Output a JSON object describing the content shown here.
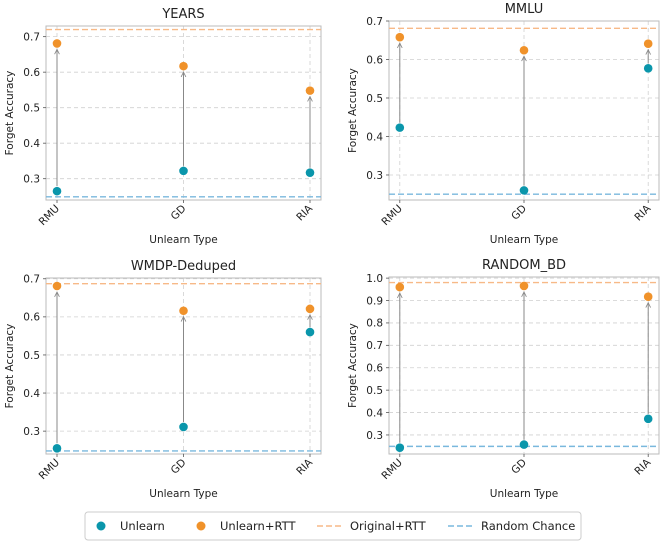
{
  "colors": {
    "unlearn": "#0a96ab",
    "unlearn_rtt": "#f0922a",
    "original_rtt": "#f7b987",
    "random_chance": "#79b8dd",
    "arrow": "#888888",
    "grid": "#d0d0d0",
    "spine": "#bbbbbb"
  },
  "legend": {
    "unlearn": "Unlearn",
    "unlearn_rtt": "Unlearn+RTT",
    "original_rtt": "Original+RTT",
    "random_chance": "Random Chance"
  },
  "chart_data": [
    {
      "type": "scatter",
      "title": "YEARS",
      "xlabel": "Unlearn Type",
      "ylabel": "Forget Accuracy",
      "categories": [
        "RMU",
        "GD",
        "RIA"
      ],
      "ylim": [
        0.24,
        0.73
      ],
      "yticks": [
        0.3,
        0.4,
        0.5,
        0.6,
        0.7
      ],
      "grid": true,
      "series": [
        {
          "name": "Unlearn",
          "values": [
            0.265,
            0.322,
            0.317
          ]
        },
        {
          "name": "Unlearn+RTT",
          "values": [
            0.681,
            0.617,
            0.548
          ]
        }
      ],
      "reference_lines": {
        "original_rtt": 0.72,
        "random_chance": 0.249
      }
    },
    {
      "type": "scatter",
      "title": "MMLU",
      "xlabel": "Unlearn Type",
      "ylabel": "Forget Accuracy",
      "categories": [
        "RMU",
        "GD",
        "RIA"
      ],
      "ylim": [
        0.235,
        0.7
      ],
      "yticks": [
        0.3,
        0.4,
        0.5,
        0.6,
        0.7
      ],
      "grid": true,
      "series": [
        {
          "name": "Unlearn",
          "values": [
            0.423,
            0.26,
            0.577
          ]
        },
        {
          "name": "Unlearn+RTT",
          "values": [
            0.658,
            0.624,
            0.641
          ]
        }
      ],
      "reference_lines": {
        "original_rtt": 0.681,
        "random_chance": 0.25
      }
    },
    {
      "type": "scatter",
      "title": "WMDP-Deduped",
      "xlabel": "Unlearn Type",
      "ylabel": "Forget Accuracy",
      "categories": [
        "RMU",
        "GD",
        "RIA"
      ],
      "ylim": [
        0.24,
        0.702
      ],
      "yticks": [
        0.3,
        0.4,
        0.5,
        0.6,
        0.7
      ],
      "grid": true,
      "series": [
        {
          "name": "Unlearn",
          "values": [
            0.255,
            0.311,
            0.56
          ]
        },
        {
          "name": "Unlearn+RTT",
          "values": [
            0.681,
            0.616,
            0.621
          ]
        }
      ],
      "reference_lines": {
        "original_rtt": 0.687,
        "random_chance": 0.248
      }
    },
    {
      "type": "scatter",
      "title": "RANDOM_BD",
      "xlabel": "Unlearn Type",
      "ylabel": "Forget Accuracy",
      "categories": [
        "RMU",
        "GD",
        "RIA"
      ],
      "ylim": [
        0.215,
        1.005
      ],
      "yticks": [
        0.3,
        0.4,
        0.5,
        0.6,
        0.7,
        0.8,
        0.9,
        1.0
      ],
      "yticklabels": [
        "0.3",
        "0.4",
        "0.5",
        "0.6",
        "0.7",
        "0.8",
        "0.9",
        "1.0"
      ],
      "grid": true,
      "series": [
        {
          "name": "Unlearn",
          "values": [
            0.243,
            0.257,
            0.372
          ]
        },
        {
          "name": "Unlearn+RTT",
          "values": [
            0.96,
            0.965,
            0.917
          ]
        }
      ],
      "reference_lines": {
        "original_rtt": 0.98,
        "random_chance": 0.249
      }
    }
  ]
}
